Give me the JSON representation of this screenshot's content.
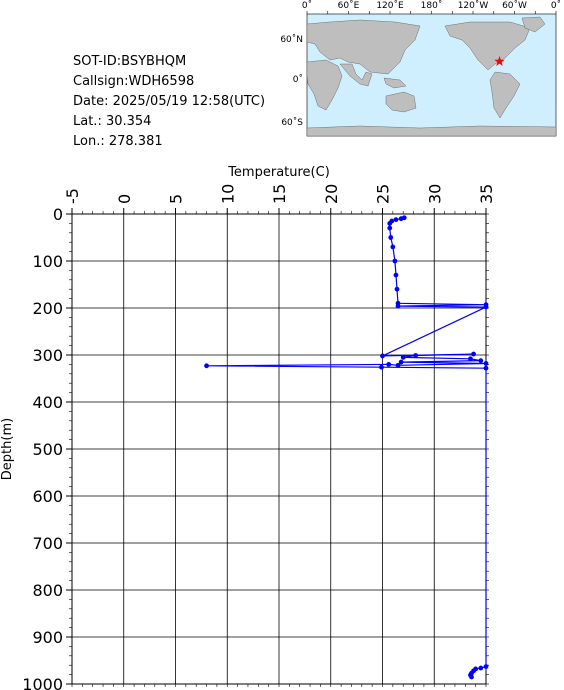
{
  "info": {
    "sot_id": "SOT-ID:BSYBHQM",
    "callsign": "Callsign:WDH6598",
    "date": "Date:  2025/05/19 12:58(UTC)",
    "lat": "Lat.:   30.354",
    "lon": "Lon.:  278.381"
  },
  "map": {
    "top_labels": [
      "0˚",
      "60˚E",
      "120˚E",
      "180˚",
      "120˚W",
      "60˚W",
      "0˚"
    ],
    "left_labels": [
      "60˚N",
      "0˚",
      "60˚S"
    ],
    "ocean_color": "#cfefff",
    "land_color": "#bebebe",
    "marker_color": "#ff0000",
    "marker_lat": 30.354,
    "marker_lon": 278.381
  },
  "chart_data": {
    "type": "line",
    "title": "",
    "xlabel": "Temperature(C)",
    "ylabel": "Depth(m)",
    "xlim": [
      -5,
      35
    ],
    "ylim": [
      1000,
      0
    ],
    "x_ticks": [
      "-5",
      "0",
      "5",
      "10",
      "15",
      "20",
      "25",
      "30",
      "35"
    ],
    "y_ticks": [
      "0",
      "100",
      "200",
      "300",
      "400",
      "500",
      "600",
      "700",
      "800",
      "900",
      "1000"
    ],
    "grid": true,
    "line_color": "#0000ff",
    "series": [
      {
        "points": [
          [
            27.1,
            8
          ],
          [
            26.8,
            10
          ],
          [
            26.3,
            12
          ],
          [
            25.9,
            15
          ],
          [
            25.7,
            20
          ],
          [
            25.7,
            30
          ],
          [
            25.8,
            50
          ],
          [
            26.0,
            70
          ],
          [
            26.2,
            100
          ],
          [
            26.3,
            130
          ],
          [
            26.4,
            160
          ],
          [
            26.5,
            190
          ],
          [
            35.0,
            193
          ],
          [
            26.5,
            196
          ],
          [
            35.0,
            198
          ],
          [
            25.0,
            302
          ],
          [
            33.8,
            298
          ],
          [
            28.2,
            301
          ],
          [
            27.0,
            305
          ],
          [
            33.5,
            308
          ],
          [
            34.5,
            312
          ],
          [
            26.8,
            315
          ],
          [
            35.0,
            318
          ],
          [
            26.5,
            322
          ],
          [
            25.6,
            320
          ],
          [
            8.0,
            323
          ],
          [
            24.9,
            326
          ],
          [
            35.0,
            328
          ],
          [
            35.0,
            963
          ],
          [
            34.5,
            966
          ],
          [
            34.0,
            968
          ],
          [
            33.8,
            972
          ],
          [
            33.6,
            977
          ],
          [
            33.5,
            981
          ],
          [
            33.6,
            985
          ]
        ]
      }
    ]
  }
}
